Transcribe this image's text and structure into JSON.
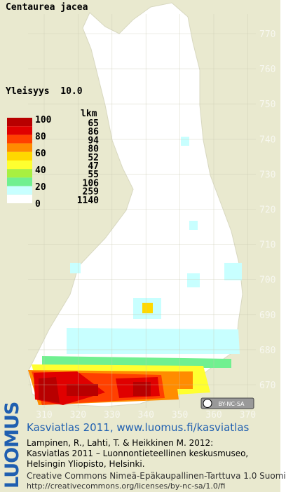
{
  "title": "Centaurea jacea",
  "subtitle": "Yleisyys  10.0",
  "legend": {
    "scale_labels": [
      100,
      80,
      60,
      40,
      20,
      0
    ],
    "count_header": "lkm",
    "counts": [
      65,
      86,
      94,
      80,
      52,
      47,
      55,
      106,
      259,
      1140
    ],
    "colors": [
      "#b80000",
      "#e00000",
      "#ff4000",
      "#ff8c00",
      "#ffd800",
      "#ffff30",
      "#a8f040",
      "#70f090",
      "#c8ffff",
      "#ffffff"
    ]
  },
  "grid": {
    "y_labels": [
      770,
      760,
      750,
      740,
      730,
      720,
      710,
      700,
      690,
      680,
      670
    ],
    "x_labels": [
      310,
      320,
      330,
      340,
      350,
      360,
      370
    ]
  },
  "license_badge": "BY-NC-SA",
  "footer": {
    "brand": "LUOMUS",
    "heading": "Kasviatlas 2011, www.luomus.fi/kasviatlas",
    "citation": [
      "Lampinen, R., Lahti, T. & Heikkinen M. 2012:",
      "Kasviatlas 2011 – Luonnontieteellinen keskusmuseo,",
      "Helsingin Yliopisto, Helsinki."
    ],
    "license": [
      "Creative Commons Nimeä-Epäkaupallinen-Tarttuva 1.0 Suomi",
      "http://creativecommons.org/licenses/by-nc-sa/1.0/fi"
    ]
  }
}
